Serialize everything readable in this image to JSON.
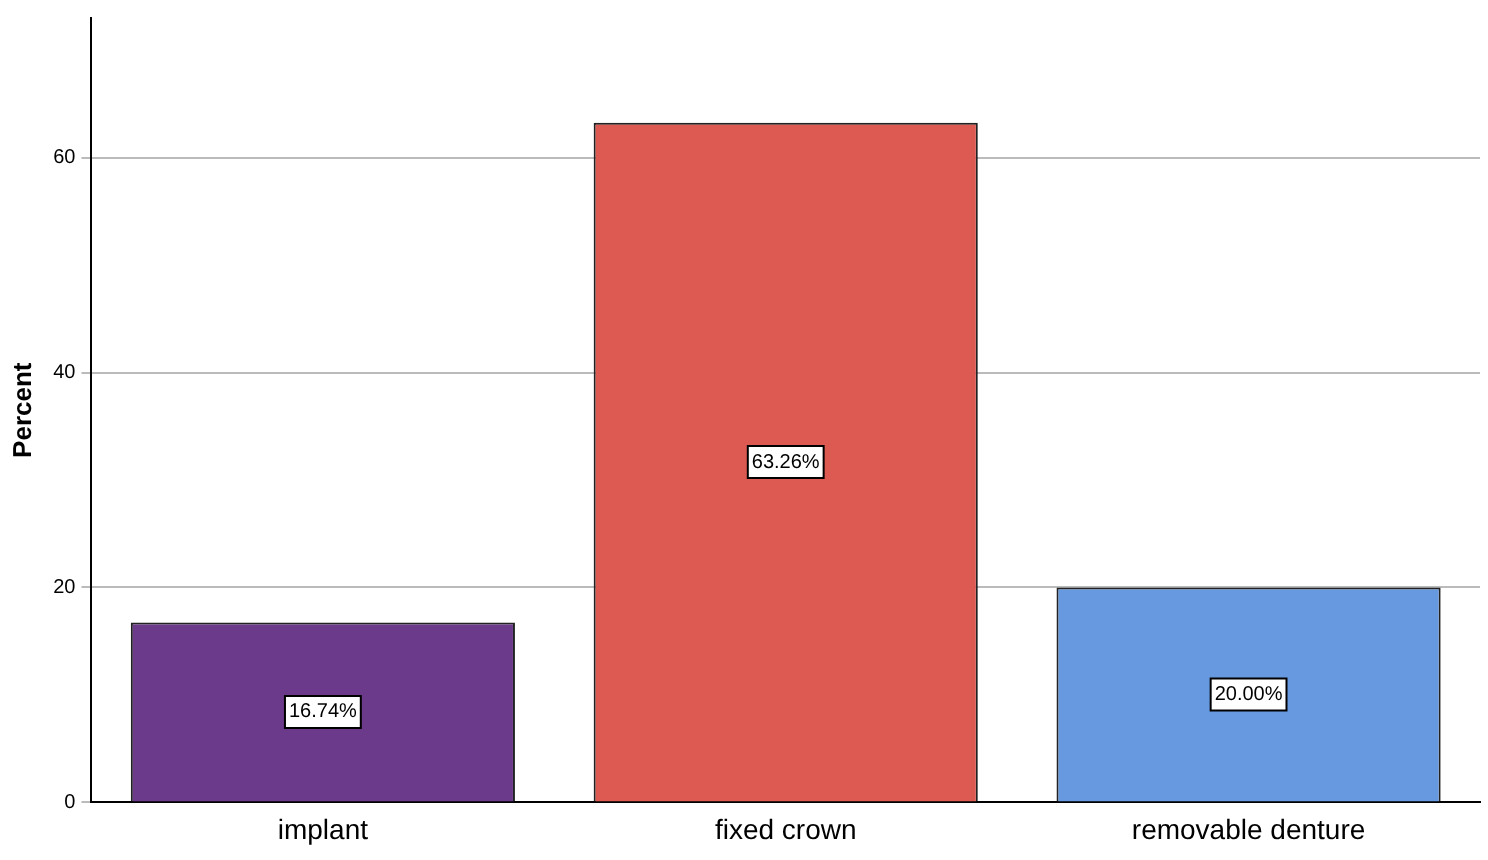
{
  "chart_data": {
    "type": "bar",
    "ylabel": "Percent",
    "categories": [
      "implant",
      "fixed crown",
      "removable denture"
    ],
    "values": [
      16.74,
      63.26,
      20.0
    ],
    "colors": [
      "#6b3a8a",
      "#dc5a52",
      "#6699e0"
    ],
    "value_labels": [
      "16.74%",
      "63.26%",
      "20.00%"
    ],
    "ylim": [
      0,
      73
    ],
    "yticks": [
      0,
      20,
      40,
      60
    ],
    "grid": "y"
  }
}
